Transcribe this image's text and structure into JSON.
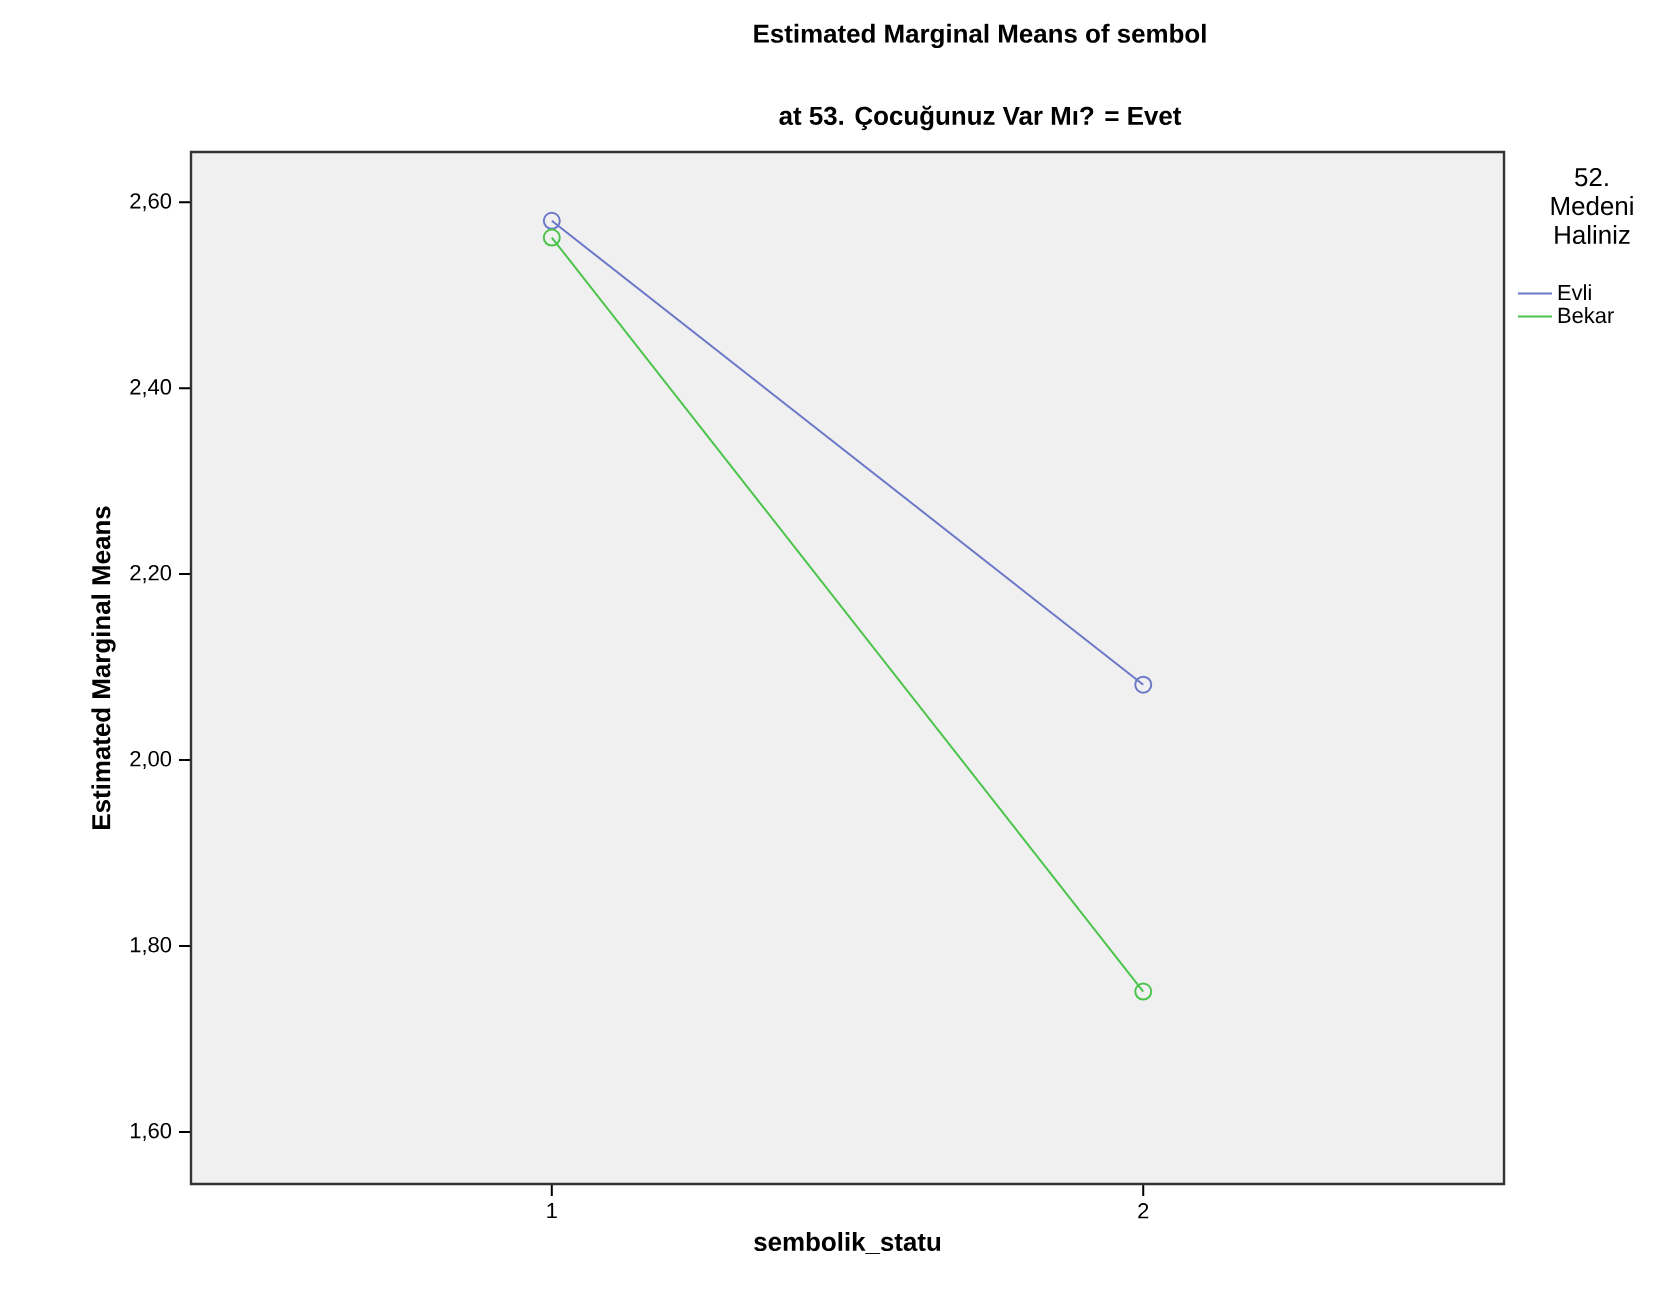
{
  "chart_data": {
    "type": "line",
    "title": "Estimated Marginal Means of sembol",
    "subtitle": "at 53. Çocuğunuz Var Mı? = Evet",
    "xlabel": "sembolik_statu",
    "ylabel": "Estimated Marginal Means",
    "legend_title": "52. Medeni Haliniz",
    "categories": [
      "1",
      "2"
    ],
    "series": [
      {
        "name": "Evli",
        "color": "#6b78c8",
        "values": [
          2.58,
          2.081
        ]
      },
      {
        "name": "Bekar",
        "color": "#4cc44c",
        "values": [
          2.562,
          1.751
        ]
      }
    ],
    "ylim": [
      1.544,
      2.654
    ],
    "yticks": [
      {
        "value": 1.6,
        "label": "1,60"
      },
      {
        "value": 1.8,
        "label": "1,80"
      },
      {
        "value": 2.0,
        "label": "2,00"
      },
      {
        "value": 2.2,
        "label": "2,20"
      },
      {
        "value": 2.4,
        "label": "2,40"
      },
      {
        "value": 2.6,
        "label": "2,60"
      }
    ],
    "grid": false,
    "legend": "top right",
    "marker": "circle",
    "line_style": "solid"
  }
}
